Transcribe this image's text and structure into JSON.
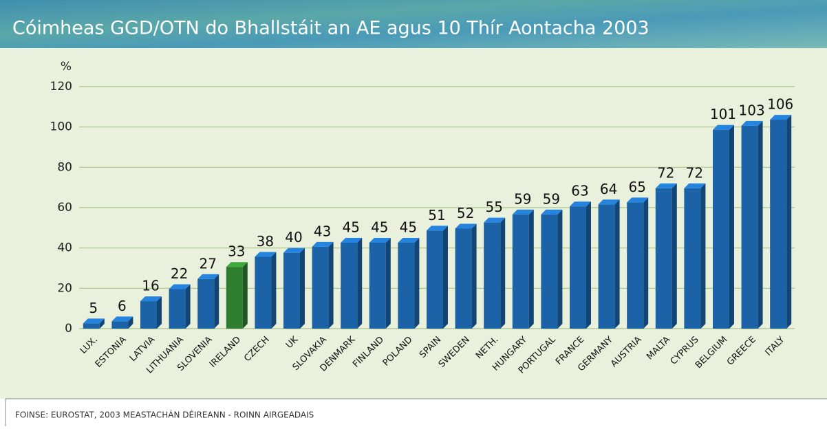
{
  "chart_data": {
    "type": "bar",
    "title": "Cóimheas GGD/OTN do Bhallstáit an AE agus 10 Thír Aontacha 2003",
    "y_label": "%",
    "source": "FOINSE: EUROSTAT, 2003 MEASTACHÁN DÉIREANN - ROINN AIRGEADAIS",
    "categories": [
      "LUX.",
      "ESTONIA",
      "LATVIA",
      "LITHUANIA",
      "SLOVENIA",
      "IRELAND",
      "CZECH",
      "UK",
      "SLOVAKIA",
      "DENMARK",
      "FINLAND",
      "POLAND",
      "SPAIN",
      "SWEDEN",
      "NETH.",
      "HUNGARY",
      "PORTUGAL",
      "FRANCE",
      "GERMANY",
      "AUSTRIA",
      "MALTA",
      "CYPRUS",
      "BELGIUM",
      "GREECE",
      "ITALY"
    ],
    "values": [
      5,
      6,
      16,
      22,
      27,
      33,
      38,
      40,
      43,
      45,
      45,
      45,
      51,
      52,
      55,
      59,
      59,
      63,
      64,
      65,
      72,
      72,
      101,
      103,
      106
    ],
    "colors": [
      "#1b62a6",
      "#1b62a6",
      "#1b62a6",
      "#1b62a6",
      "#1b62a6",
      "#2f7d2f",
      "#1b62a6",
      "#1b62a6",
      "#1b62a6",
      "#1b62a6",
      "#1b62a6",
      "#1b62a6",
      "#1b62a6",
      "#1b62a6",
      "#1b62a6",
      "#1b62a6",
      "#1b62a6",
      "#1b62a6",
      "#1b62a6",
      "#1b62a6",
      "#1b62a6",
      "#1b62a6",
      "#1b62a6",
      "#1b62a6",
      "#1b62a6"
    ],
    "ylim": [
      0,
      120
    ],
    "yticks": [
      0,
      20,
      40,
      60,
      80,
      100,
      120
    ],
    "grid": true
  }
}
